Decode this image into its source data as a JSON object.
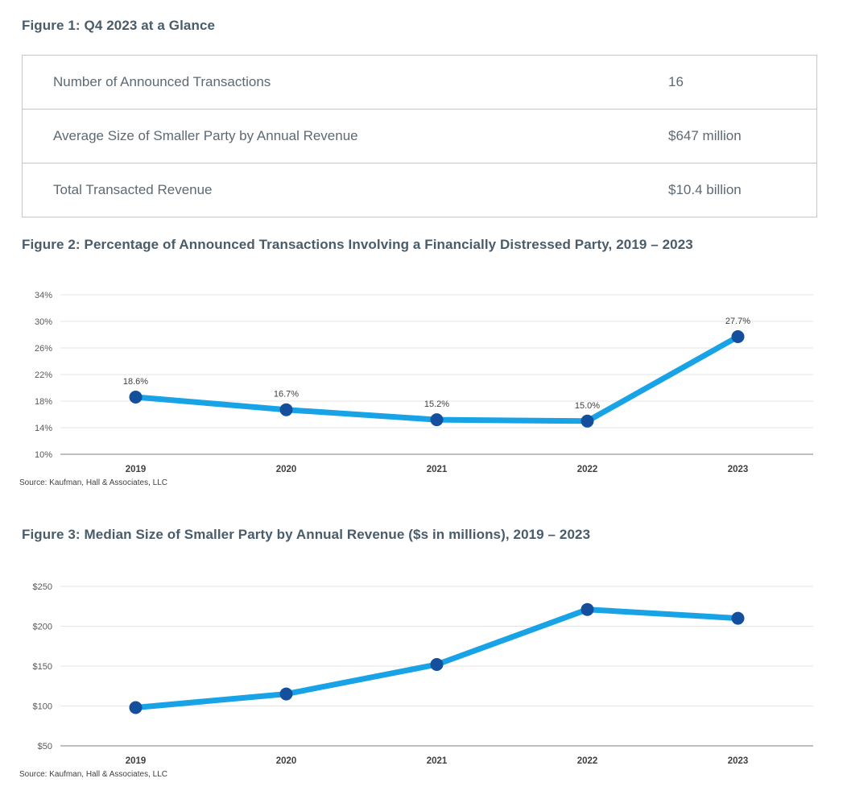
{
  "page": {
    "background": "#ffffff",
    "title_color": "#4a5c6a",
    "accent_line_color": "#17a3e6",
    "accent_marker_color": "#134f9d"
  },
  "figure1": {
    "title": "Figure 1: Q4 2023 at a Glance",
    "rows": [
      {
        "label": "Number of Announced Transactions",
        "value": "16"
      },
      {
        "label": "Average Size of Smaller Party by Annual Revenue",
        "value": "$647 million"
      },
      {
        "label": "Total Transacted Revenue",
        "value": "$10.4 billion"
      }
    ]
  },
  "figure2": {
    "title": "Figure 2: Percentage of Announced Transactions Involving a Financially Distressed Party, 2019 – 2023",
    "source": "Source: Kaufman, Hall & Associates, LLC"
  },
  "figure3": {
    "title": "Figure 3: Median Size of Smaller Party by Annual Revenue ($s in millions), 2019 – 2023",
    "source": "Source: Kaufman, Hall & Associates, LLC"
  },
  "chart_data": [
    {
      "id": "fig2-chart",
      "type": "line",
      "title": "Percentage of Announced Transactions Involving a Financially Distressed Party, 2019 – 2023",
      "categories": [
        "2019",
        "2020",
        "2021",
        "2022",
        "2023"
      ],
      "values": [
        18.6,
        16.7,
        15.2,
        15.0,
        27.7
      ],
      "data_labels": [
        "18.6%",
        "16.7%",
        "15.2%",
        "15.0%",
        "27.7%"
      ],
      "show_data_labels": true,
      "xlabel": "",
      "ylabel": "",
      "ylim": [
        10,
        34
      ],
      "ytick_step": 4,
      "ytick_prefix": "",
      "ytick_suffix": "%",
      "grid": true,
      "legend": "none",
      "line_color": "#17a3e6",
      "marker_color": "#134f9d"
    },
    {
      "id": "fig3-chart",
      "type": "line",
      "title": "Median Size of Smaller Party by Annual Revenue ($s in millions), 2019 – 2023",
      "categories": [
        "2019",
        "2020",
        "2021",
        "2022",
        "2023"
      ],
      "values": [
        98,
        115,
        152,
        221,
        210
      ],
      "data_labels": [
        "$98",
        "$115",
        "$152",
        "$221",
        "$210"
      ],
      "show_data_labels": false,
      "xlabel": "",
      "ylabel": "",
      "ylim": [
        50,
        250
      ],
      "ytick_step": 50,
      "ytick_prefix": "$",
      "ytick_suffix": "",
      "grid": true,
      "legend": "none",
      "line_color": "#17a3e6",
      "marker_color": "#134f9d"
    }
  ]
}
